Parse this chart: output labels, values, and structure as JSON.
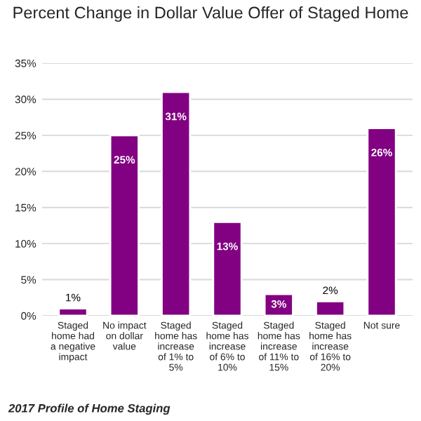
{
  "chart_data": {
    "type": "bar",
    "title": "Percent Change in Dollar Value Offer of Staged Home",
    "categories": [
      "Staged\nhome had\na negative\nimpact",
      "No impact\non dollar\nvalue",
      "Staged\nhome has\nincrease\nof 1% to\n5%",
      "Staged\nhome has\nincrease\nof 6% to\n10%",
      "Staged\nhome has\nincrease\nof 11% to\n15%",
      "Staged\nhome has\nincrease\nof 16% to\n20%",
      "Not sure"
    ],
    "values": [
      1,
      25,
      31,
      13,
      3,
      2,
      26
    ],
    "value_labels": [
      "1%",
      "25%",
      "31%",
      "13%",
      "3%",
      "2%",
      "26%"
    ],
    "color": "#820082",
    "ylim": [
      0,
      35
    ],
    "yticks": [
      {
        "value": 0,
        "label": "0%"
      },
      {
        "value": 5,
        "label": "5%"
      },
      {
        "value": 10,
        "label": "10%"
      },
      {
        "value": 15,
        "label": "15%"
      },
      {
        "value": 20,
        "label": "20%"
      },
      {
        "value": 25,
        "label": "25%"
      },
      {
        "value": 30,
        "label": "30%"
      },
      {
        "value": 35,
        "label": "35%"
      }
    ],
    "grid": "y",
    "annotations": [
      "2017 Profile of Home Staging"
    ]
  }
}
